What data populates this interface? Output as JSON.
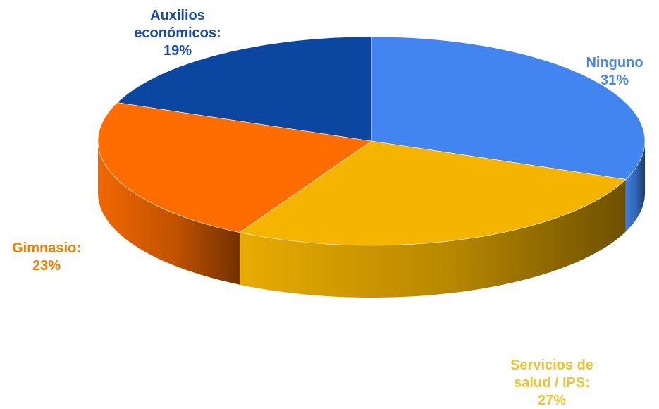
{
  "chart_data": {
    "type": "pie",
    "style": "3d",
    "slices": [
      {
        "label_lines": [
          "Ninguno",
          "31%"
        ],
        "category": "Ninguno",
        "value": 31,
        "color": "#4285F0",
        "label_color": "#4A86E8"
      },
      {
        "label_lines": [
          "Servicios de",
          "salud / IPS:",
          "27%"
        ],
        "category": "Servicios de salud / IPS",
        "value": 27,
        "color": "#F4B400",
        "label_color": "#F1C232"
      },
      {
        "label_lines": [
          "Gimnasio:",
          "23%"
        ],
        "category": "Gimnasio",
        "value": 23,
        "color": "#FF6D00",
        "label_color": "#F57C00"
      },
      {
        "label_lines": [
          "Auxilios",
          "económicos:",
          "19%"
        ],
        "category": "Auxilios económicos",
        "value": 19,
        "color": "#0B47A1",
        "label_color": "#1A4AAA"
      }
    ]
  }
}
